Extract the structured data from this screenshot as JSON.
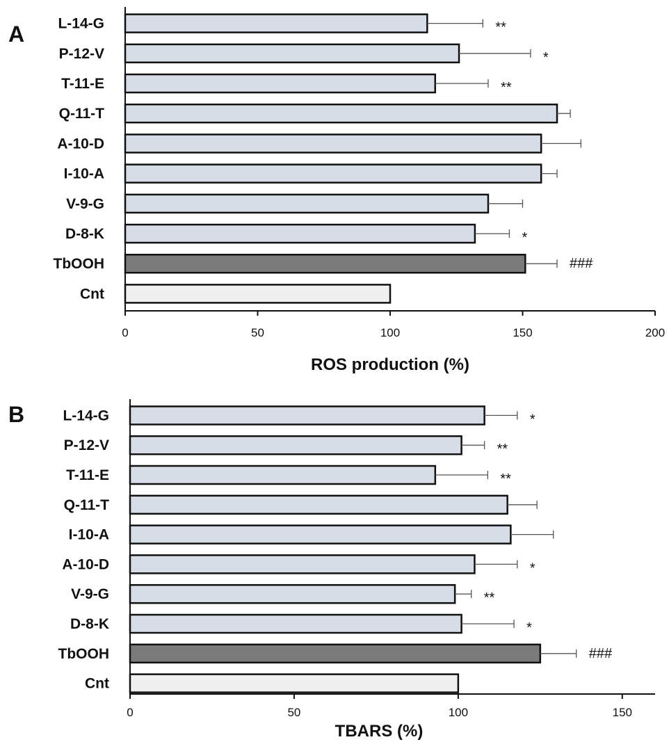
{
  "chart_data": [
    {
      "type": "bar",
      "orientation": "horizontal",
      "panel_label": "A",
      "xlabel": "ROS production (%)",
      "xlim": [
        0,
        200
      ],
      "xticks": [
        0,
        50,
        100,
        150,
        200
      ],
      "categories": [
        "L-14-G",
        "P-12-V",
        "T-11-E",
        "Q-11-T",
        "A-10-D",
        "I-10-A",
        "V-9-G",
        "D-8-K",
        "TbOOH",
        "Cnt"
      ],
      "values": [
        114,
        126,
        117,
        163,
        157,
        157,
        137,
        132,
        151,
        100
      ],
      "errors": [
        21,
        27,
        20,
        5,
        15,
        6,
        13,
        13,
        12,
        0
      ],
      "significance": [
        "**",
        "*",
        "**",
        "",
        "",
        "",
        "",
        "*",
        "###",
        ""
      ],
      "bar_colors": [
        "#d6dde6",
        "#d6dde6",
        "#d6dde6",
        "#d6dde6",
        "#d6dde6",
        "#d6dde6",
        "#d6dde6",
        "#d6dde6",
        "#7a7a7a",
        "#f0f0f0"
      ]
    },
    {
      "type": "bar",
      "orientation": "horizontal",
      "panel_label": "B",
      "xlabel": "TBARS (%)",
      "xlim": [
        0,
        160
      ],
      "xticks": [
        0,
        50,
        100,
        150
      ],
      "categories": [
        "L-14-G",
        "P-12-V",
        "T-11-E",
        "Q-11-T",
        "I-10-A",
        "A-10-D",
        "V-9-G",
        "D-8-K",
        "TbOOH",
        "Cnt"
      ],
      "values": [
        108,
        101,
        93,
        115,
        116,
        105,
        99,
        101,
        125,
        100
      ],
      "errors": [
        10,
        7,
        16,
        9,
        13,
        13,
        5,
        16,
        11,
        0
      ],
      "significance": [
        "*",
        "**",
        "**",
        "",
        "",
        "*",
        "**",
        "*",
        "###",
        ""
      ],
      "bar_colors": [
        "#d6dde6",
        "#d6dde6",
        "#d6dde6",
        "#d6dde6",
        "#d6dde6",
        "#d6dde6",
        "#d6dde6",
        "#d6dde6",
        "#7a7a7a",
        "#f0f0f0"
      ]
    }
  ]
}
